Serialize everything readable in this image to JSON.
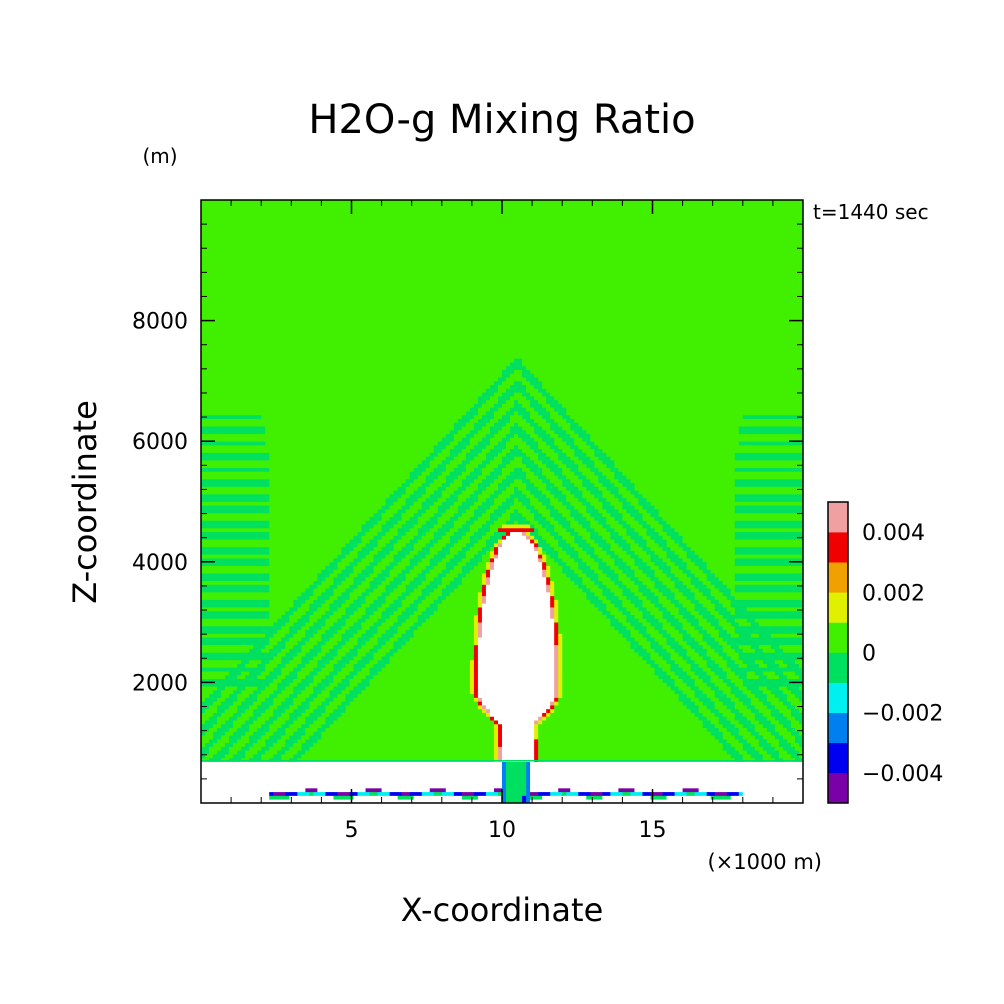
{
  "chart_data": {
    "type": "heatmap",
    "title": "H2O-g Mixing Ratio",
    "xlabel": "X-coordinate",
    "ylabel": "Z-coordinate",
    "x_unit": "(×1000 m)",
    "y_unit": "(m)",
    "time_label": "t=1440 sec",
    "xlim": [
      0,
      20
    ],
    "ylim": [
      0,
      10000
    ],
    "x_ticks": [
      5,
      10,
      15
    ],
    "y_ticks": [
      2000,
      4000,
      6000,
      8000
    ],
    "colorbar": {
      "levels": [
        -0.005,
        -0.004,
        -0.003,
        -0.002,
        -0.001,
        0,
        0.001,
        0.002,
        0.003,
        0.004,
        0.005
      ],
      "colors": [
        "#7a00a8",
        "#0000f0",
        "#0080f0",
        "#00f0f0",
        "#00e060",
        "#40f000",
        "#e0f000",
        "#f0a000",
        "#f00000",
        "#f0a0a0"
      ],
      "tick_values": [
        -0.004,
        -0.002,
        0,
        0.002,
        0.004
      ],
      "tick_labels": [
        "−0.004",
        "−0.002",
        "0",
        "0.002",
        "0.004"
      ]
    },
    "field": {
      "background_level": 0.0005,
      "plume_top_m": 4500,
      "plume_max_halfwidth_x": 1.3,
      "stem_halfwidth_x": 0.5,
      "inversion_height_m": 700,
      "surface_layer_x_range": [
        2.2,
        18
      ],
      "surface_layer_top_m": 200
    }
  }
}
